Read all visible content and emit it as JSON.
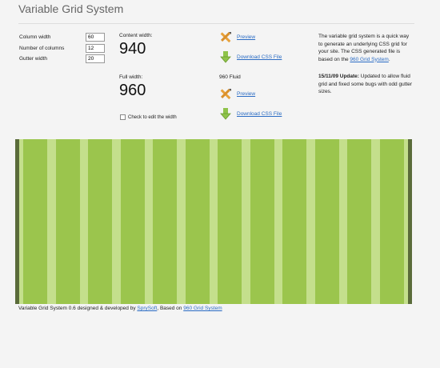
{
  "page": {
    "title": "Variable Grid System"
  },
  "settings": {
    "fields": [
      {
        "label": "Column width",
        "value": "60"
      },
      {
        "label": "Number of columns",
        "value": "12"
      },
      {
        "label": "Gutter width",
        "value": "20"
      }
    ]
  },
  "widths": {
    "content_label": "Content width:",
    "content_value": "940",
    "full_label": "Full width:",
    "full_value": "960",
    "checkbox_label": "Check to edit the width"
  },
  "downloads": {
    "fixed": {
      "preview": "Preview",
      "download": "Download CSS File"
    },
    "fluid_label": "960 Fluid",
    "fluid": {
      "preview": "Preview",
      "download": "Download CSS File"
    }
  },
  "description": {
    "intro": "The variable grid system is a quick way to generate an underlying CSS grid for your site. The CSS generated file is based on the ",
    "intro_link": "960 Grid System",
    "intro_end": ".",
    "update_label": "15/11/09 Update:",
    "update_text": " Updated to allow fluid grid and fixed some bugs with odd gutter sizes."
  },
  "grid": {
    "columns": 12,
    "column_width": 60,
    "gutter_width": 20
  },
  "footer": {
    "text": "Variable Grid System 0.6 designed & developed by ",
    "author_link": "SpryS​oft",
    "middle": ", Based on ",
    "grid_link": "960 Grid System"
  },
  "colors": {
    "column": "#9bc54d",
    "gutter": "#c4df8c",
    "border": "#5a6b3a",
    "link": "#2b6cc4"
  },
  "icons": [
    "pencil-ruler-icon",
    "download-arrow-icon"
  ]
}
